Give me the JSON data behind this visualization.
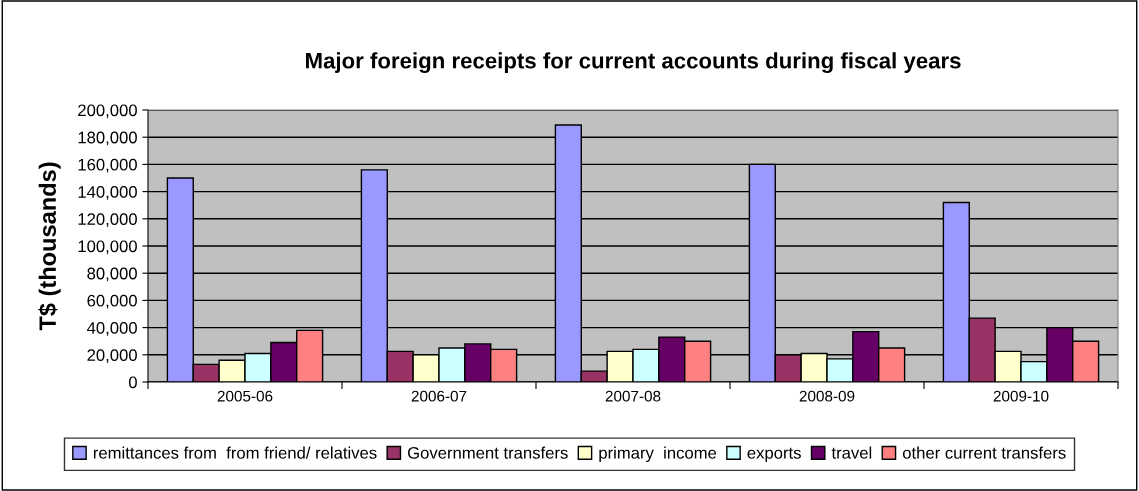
{
  "chart_data": {
    "type": "bar",
    "title": "Major foreign receipts for current accounts during fiscal years",
    "ylabel": "T$ (thousands)",
    "categories": [
      "2005-06",
      "2006-07",
      "2007-08",
      "2008-09",
      "2009-10"
    ],
    "series": [
      {
        "name": "remittances from  from friend/ relatives",
        "color": "#9999ff",
        "values": [
          150000,
          156000,
          189000,
          160000,
          132000
        ]
      },
      {
        "name": "Government transfers",
        "color": "#993366",
        "values": [
          13000,
          22500,
          8000,
          20000,
          47000
        ]
      },
      {
        "name": "primary  income",
        "color": "#ffffcc",
        "values": [
          16000,
          20000,
          22500,
          21000,
          22500
        ]
      },
      {
        "name": "exports",
        "color": "#ccffff",
        "values": [
          21000,
          25000,
          24000,
          17000,
          15000
        ]
      },
      {
        "name": "travel",
        "color": "#660066",
        "values": [
          29000,
          28000,
          33000,
          37000,
          40000
        ]
      },
      {
        "name": "other current transfers",
        "color": "#ff8080",
        "values": [
          38000,
          24000,
          30000,
          25000,
          30000
        ]
      }
    ],
    "ylim": [
      0,
      200000
    ],
    "yticks": [
      0,
      {
        "value": 20000,
        "label": "20,000"
      },
      {
        "value": 40000,
        "label": "40,000"
      },
      {
        "value": 60000,
        "label": "60,000"
      },
      {
        "value": 80000,
        "label": "80,000"
      },
      {
        "value": 100000,
        "label": "100,000"
      },
      {
        "value": 120000,
        "label": "120,000"
      },
      {
        "value": 140000,
        "label": "140,000"
      },
      {
        "value": 160000,
        "label": "160,000"
      },
      {
        "value": 180000,
        "label": "180,000"
      },
      {
        "value": 200000,
        "label": "200,000"
      }
    ],
    "grid": "y",
    "legend": "bottom"
  }
}
